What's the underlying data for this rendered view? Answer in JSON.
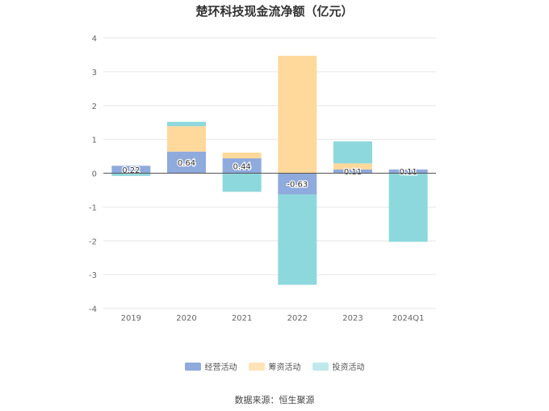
{
  "title": "楚环科技现金流净额（亿元）",
  "source": "数据来源：恒生聚源",
  "chart_data": {
    "type": "bar",
    "stacked": true,
    "categories": [
      "2019",
      "2020",
      "2021",
      "2022",
      "2023",
      "2024Q1"
    ],
    "ylim": [
      -4,
      4
    ],
    "yticks": [
      4,
      3,
      2,
      1,
      0,
      -1,
      -2,
      -3,
      -4
    ],
    "grid": true,
    "legend_position": "bottom",
    "series": [
      {
        "name": "经营活动",
        "color": "#8faadc",
        "values": [
          0.22,
          0.64,
          0.44,
          -0.63,
          0.11,
          0.11
        ],
        "labels": [
          "0.22",
          "0.64",
          "0.44",
          "-0.63",
          "0.11",
          "0.11"
        ]
      },
      {
        "name": "筹资活动",
        "color": "#ffd99b",
        "values": [
          0,
          0.75,
          0.17,
          3.47,
          0.18,
          0
        ]
      },
      {
        "name": "投资活动",
        "color": "#8dd8dc",
        "values": [
          -0.08,
          0.13,
          -0.55,
          -2.67,
          0.65,
          -2.03
        ]
      }
    ]
  }
}
